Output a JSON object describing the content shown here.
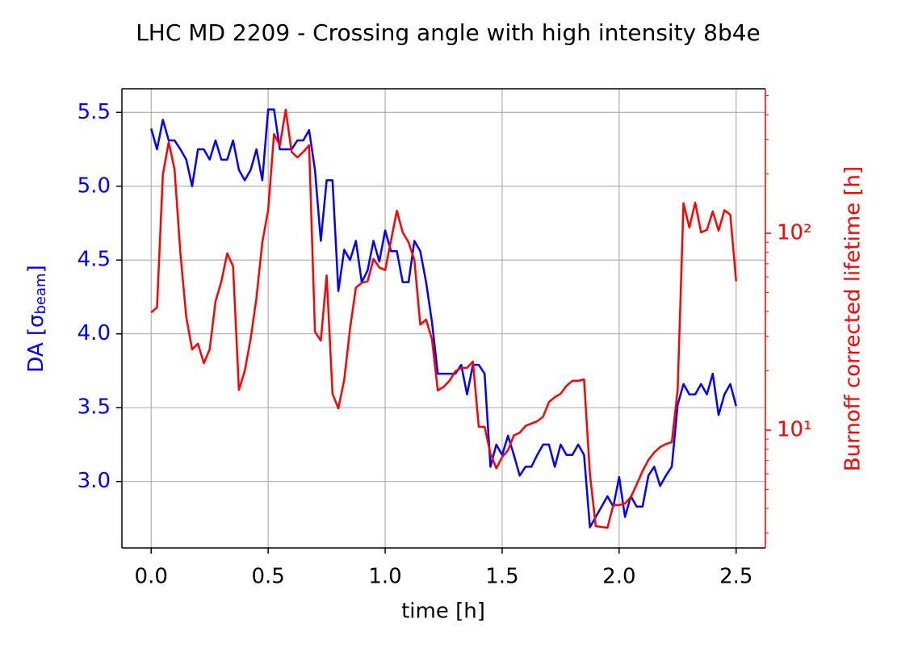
{
  "chart_data": {
    "type": "line",
    "title": "LHC MD 2209 - Crossing angle with high intensity 8b4e",
    "xlabel": "time [h]",
    "ylabel": [
      "DA [σ",
      "beam",
      "]"
    ],
    "y2label": "Burnoff corrected lifetime [h]",
    "y2log": true,
    "grid": true,
    "x": [
      0,
      0.025,
      0.05,
      0.075,
      0.1,
      0.125,
      0.15,
      0.175,
      0.2,
      0.225,
      0.25,
      0.275,
      0.3,
      0.325,
      0.35,
      0.375,
      0.4,
      0.425,
      0.45,
      0.475,
      0.5,
      0.525,
      0.55,
      0.575,
      0.6,
      0.625,
      0.65,
      0.675,
      0.7,
      0.725,
      0.75,
      0.775,
      0.8,
      0.825,
      0.85,
      0.875,
      0.9,
      0.925,
      0.95,
      0.975,
      1.0,
      1.025,
      1.05,
      1.075,
      1.1,
      1.125,
      1.15,
      1.175,
      1.2,
      1.225,
      1.25,
      1.275,
      1.3,
      1.325,
      1.35,
      1.375,
      1.4,
      1.425,
      1.45,
      1.475,
      1.5,
      1.525,
      1.55,
      1.575,
      1.6,
      1.625,
      1.65,
      1.675,
      1.7,
      1.725,
      1.75,
      1.775,
      1.8,
      1.825,
      1.85,
      1.875,
      1.9,
      1.925,
      1.95,
      1.975,
      2.0,
      2.025,
      2.05,
      2.075,
      2.1,
      2.125,
      2.15,
      2.175,
      2.2,
      2.225,
      2.25,
      2.275,
      2.3,
      2.325,
      2.35,
      2.375,
      2.4,
      2.425,
      2.45,
      2.475,
      2.5
    ],
    "series": [
      {
        "color": "#0000ff",
        "values": [
          5.39,
          5.25,
          5.45,
          5.31,
          5.31,
          5.25,
          5.18,
          5.0,
          5.25,
          5.25,
          5.18,
          5.31,
          5.18,
          5.18,
          5.31,
          5.11,
          5.04,
          5.11,
          5.25,
          5.04,
          5.52,
          5.52,
          5.25,
          5.25,
          5.25,
          5.31,
          5.31,
          5.38,
          5.11,
          4.63,
          5.04,
          5.04,
          4.29,
          4.57,
          4.5,
          4.63,
          4.35,
          4.43,
          4.63,
          4.49,
          4.7,
          4.56,
          4.56,
          4.35,
          4.35,
          4.63,
          4.56,
          4.35,
          4.08,
          3.73,
          3.73,
          3.73,
          3.73,
          3.79,
          3.59,
          3.79,
          3.79,
          3.73,
          3.1,
          3.25,
          3.18,
          3.31,
          3.18,
          3.04,
          3.1,
          3.1,
          3.18,
          3.25,
          3.25,
          3.1,
          3.25,
          3.18,
          3.18,
          3.25,
          3.18,
          2.69,
          2.76,
          2.83,
          2.9,
          2.83,
          3.03,
          2.76,
          2.9,
          2.83,
          2.83,
          3.04,
          3.1,
          2.97,
          3.04,
          3.1,
          3.52,
          3.66,
          3.59,
          3.59,
          3.66,
          3.59,
          3.73,
          3.45,
          3.59,
          3.66,
          3.51
        ]
      },
      {
        "color": "#ff0000",
        "axis": "y2",
        "values": [
          39.6,
          42,
          199,
          290,
          211,
          79,
          37.5,
          25.7,
          27.5,
          21.9,
          25.7,
          45,
          57,
          79,
          68,
          16,
          20,
          29,
          47,
          90,
          131,
          319,
          280,
          424,
          259,
          243,
          259,
          280,
          31.6,
          28.5,
          61,
          15.3,
          12.9,
          18,
          32.8,
          53,
          56,
          57,
          74,
          67,
          65,
          92,
          130,
          101,
          90,
          73,
          34.4,
          36.4,
          29,
          15.9,
          16.6,
          17.8,
          19.9,
          20.7,
          20.7,
          22.3,
          10.4,
          10.4,
          7.6,
          6.4,
          7.3,
          7.9,
          9.4,
          9.7,
          10.5,
          10.8,
          11.1,
          11.7,
          13.9,
          14.7,
          15.3,
          16.8,
          17.8,
          17.8,
          18.1,
          6.0,
          3.25,
          3.22,
          3.19,
          4.16,
          4.16,
          4.24,
          4.57,
          5.3,
          6.2,
          7.05,
          7.7,
          8.2,
          8.5,
          8.7,
          16,
          142,
          107,
          143,
          101,
          104,
          129,
          103,
          131,
          124,
          57
        ]
      }
    ],
    "xlim": [
      -0.125,
      2.625
    ],
    "xticks": [
      {
        "value": 0,
        "label": "0.0"
      },
      0.5,
      {
        "value": 1,
        "label": "1.0"
      },
      1.5,
      {
        "value": 2,
        "label": "2.0"
      },
      2.5
    ],
    "ylim": [
      2.55,
      5.66
    ],
    "yticks": [
      {
        "value": 3,
        "label": "3.0"
      },
      3.5,
      {
        "value": 4,
        "label": "4.0"
      },
      4.5,
      {
        "value": 5,
        "label": "5.0"
      },
      5.5
    ],
    "y2lim": [
      2.52,
      542
    ],
    "y2ticks": [
      {
        "value": 10,
        "label": "10¹"
      },
      {
        "value": 100,
        "label": "10²"
      }
    ],
    "y2minorticks": [
      3,
      4,
      5,
      6,
      7,
      8,
      9,
      20,
      30,
      40,
      50,
      60,
      70,
      80,
      90,
      200,
      300,
      400,
      500
    ]
  }
}
